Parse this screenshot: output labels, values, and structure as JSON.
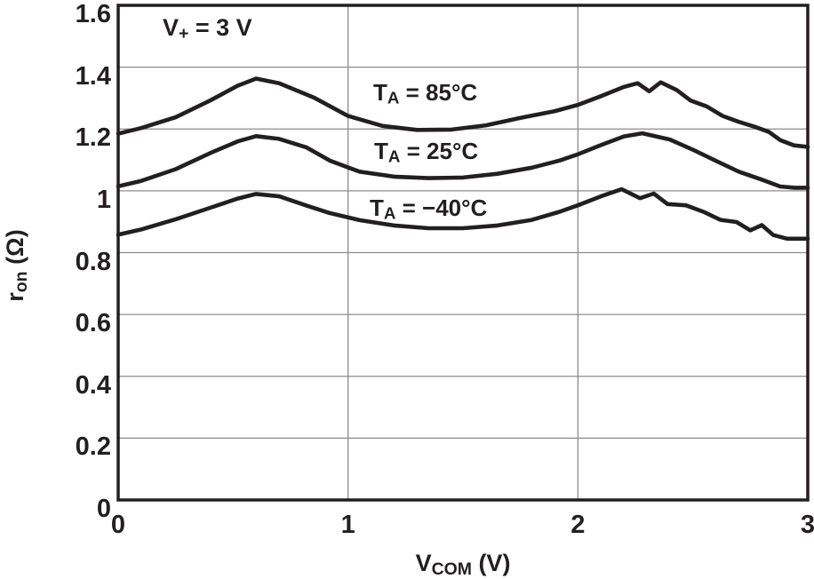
{
  "chart_data": {
    "type": "line",
    "title": "",
    "xlabel": {
      "pre": "V",
      "sub": "COM",
      "post": " (V)"
    },
    "ylabel": {
      "pre": "r",
      "sub": "on",
      "post": " (Ω)"
    },
    "annotation": {
      "pre": "V",
      "sub": "+",
      "post": " = 3 V"
    },
    "xlim": [
      0,
      3
    ],
    "ylim": [
      0,
      1.6
    ],
    "grid": true,
    "legend_position": "inline-curve-labels",
    "x_ticks": [
      {
        "v": 0,
        "label": "0"
      },
      {
        "v": 1,
        "label": "1"
      },
      {
        "v": 2,
        "label": "2"
      },
      {
        "v": 3,
        "label": "3"
      }
    ],
    "y_ticks": [
      {
        "v": 1.6,
        "label": "1.6"
      },
      {
        "v": 1.4,
        "label": "1.4"
      },
      {
        "v": 1.2,
        "label": "1.2"
      },
      {
        "v": 1.0,
        "label": "1"
      },
      {
        "v": 0.8,
        "label": "0.8"
      },
      {
        "v": 0.6,
        "label": "0.6"
      },
      {
        "v": 0.4,
        "label": "0.4"
      },
      {
        "v": 0.2,
        "label": "0.2"
      },
      {
        "v": 0.0,
        "label": "0"
      }
    ],
    "colors": {
      "curve": "#231f20",
      "grid": "#8c8c8c",
      "text": "#231f20",
      "background": "#ffffff"
    },
    "series": [
      {
        "id": "85c",
        "name": "TA = 85°C",
        "label": {
          "pre": "T",
          "sub": "A",
          "post": " = 85°C"
        },
        "points": [
          [
            0,
            1.185
          ],
          [
            0.1,
            1.203
          ],
          [
            0.25,
            1.238
          ],
          [
            0.4,
            1.292
          ],
          [
            0.52,
            1.34
          ],
          [
            0.6,
            1.363
          ],
          [
            0.7,
            1.348
          ],
          [
            0.85,
            1.302
          ],
          [
            1.0,
            1.242
          ],
          [
            1.15,
            1.21
          ],
          [
            1.3,
            1.197
          ],
          [
            1.45,
            1.198
          ],
          [
            1.6,
            1.212
          ],
          [
            1.75,
            1.236
          ],
          [
            1.9,
            1.258
          ],
          [
            2.0,
            1.278
          ],
          [
            2.1,
            1.306
          ],
          [
            2.2,
            1.336
          ],
          [
            2.26,
            1.348
          ],
          [
            2.31,
            1.322
          ],
          [
            2.36,
            1.351
          ],
          [
            2.43,
            1.326
          ],
          [
            2.49,
            1.292
          ],
          [
            2.56,
            1.273
          ],
          [
            2.63,
            1.242
          ],
          [
            2.7,
            1.223
          ],
          [
            2.77,
            1.207
          ],
          [
            2.83,
            1.191
          ],
          [
            2.88,
            1.164
          ],
          [
            2.94,
            1.147
          ],
          [
            3,
            1.142
          ]
        ]
      },
      {
        "id": "25c",
        "name": "TA = 25°C",
        "label": {
          "pre": "T",
          "sub": "A",
          "post": " = 25°C"
        },
        "points": [
          [
            0,
            1.015
          ],
          [
            0.1,
            1.032
          ],
          [
            0.25,
            1.07
          ],
          [
            0.4,
            1.122
          ],
          [
            0.52,
            1.16
          ],
          [
            0.6,
            1.177
          ],
          [
            0.7,
            1.168
          ],
          [
            0.82,
            1.14
          ],
          [
            0.92,
            1.098
          ],
          [
            1.05,
            1.062
          ],
          [
            1.2,
            1.046
          ],
          [
            1.35,
            1.041
          ],
          [
            1.5,
            1.043
          ],
          [
            1.65,
            1.055
          ],
          [
            1.8,
            1.075
          ],
          [
            1.92,
            1.098
          ],
          [
            2.0,
            1.118
          ],
          [
            2.1,
            1.148
          ],
          [
            2.2,
            1.176
          ],
          [
            2.28,
            1.186
          ],
          [
            2.4,
            1.166
          ],
          [
            2.5,
            1.133
          ],
          [
            2.6,
            1.097
          ],
          [
            2.7,
            1.062
          ],
          [
            2.8,
            1.036
          ],
          [
            2.88,
            1.014
          ],
          [
            2.94,
            1.01
          ],
          [
            3,
            1.01
          ]
        ]
      },
      {
        "id": "minus40c",
        "name": "TA = −40°C",
        "label": {
          "pre": "T",
          "sub": "A",
          "post": " = −40°C"
        },
        "points": [
          [
            0,
            0.858
          ],
          [
            0.1,
            0.875
          ],
          [
            0.25,
            0.908
          ],
          [
            0.4,
            0.945
          ],
          [
            0.52,
            0.975
          ],
          [
            0.6,
            0.99
          ],
          [
            0.7,
            0.982
          ],
          [
            0.82,
            0.952
          ],
          [
            0.92,
            0.928
          ],
          [
            1.05,
            0.905
          ],
          [
            1.2,
            0.888
          ],
          [
            1.35,
            0.879
          ],
          [
            1.5,
            0.879
          ],
          [
            1.65,
            0.888
          ],
          [
            1.8,
            0.906
          ],
          [
            1.92,
            0.932
          ],
          [
            2.0,
            0.953
          ],
          [
            2.1,
            0.982
          ],
          [
            2.19,
            1.005
          ],
          [
            2.27,
            0.976
          ],
          [
            2.33,
            0.991
          ],
          [
            2.39,
            0.957
          ],
          [
            2.47,
            0.953
          ],
          [
            2.55,
            0.931
          ],
          [
            2.62,
            0.906
          ],
          [
            2.69,
            0.899
          ],
          [
            2.75,
            0.872
          ],
          [
            2.8,
            0.889
          ],
          [
            2.85,
            0.857
          ],
          [
            2.91,
            0.845
          ],
          [
            3,
            0.845
          ]
        ]
      }
    ]
  }
}
